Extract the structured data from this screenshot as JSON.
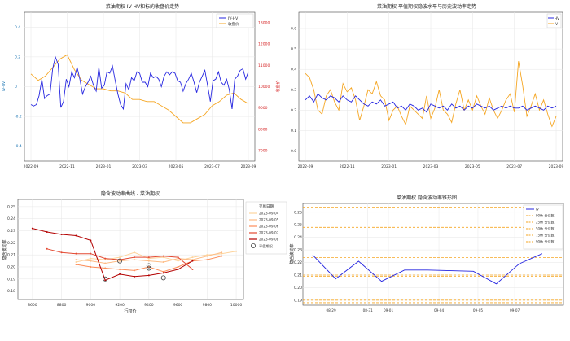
{
  "colors": {
    "iv_hv": "#2525e0",
    "close": "#f5a623",
    "hv": "#f5a623",
    "iv": "#2525e0",
    "close_axis": "#d62728",
    "ivhv_axis": "#1f77b4",
    "pct": "#f5a623",
    "grid": "#e6e6e6",
    "series_2023_09_04": "#fdd49e",
    "series_2023_09_05": "#fdbb84",
    "series_2023_09_06": "#fc8d59",
    "series_2023_09_07": "#e34a33",
    "series_2023_09_08": "#b30000"
  },
  "chart_data": [
    {
      "id": "c1",
      "type": "line",
      "title": "菜油期权 IV-HV和标的收盘价走势",
      "x_ticks": [
        "2022-09",
        "2022-11",
        "2023-01",
        "2023-03",
        "2023-05",
        "2023-07",
        "2023-09"
      ],
      "x_range": [
        0,
        12
      ],
      "ylabel_left": "iv-hv",
      "ylim_left": [
        -0.5,
        0.5
      ],
      "yticks_left": [
        "0.4",
        "0.2",
        "0",
        "-0.2",
        "-0.4"
      ],
      "yticks_left_values": [
        0.4,
        0.2,
        0,
        -0.2,
        -0.4
      ],
      "ylabel_right": "收盘价",
      "ylim_right": [
        6500,
        13500
      ],
      "yticks_right": [
        "13000",
        "12000",
        "11000",
        "10000",
        "9000",
        "8000",
        "7000"
      ],
      "yticks_right_values": [
        13000,
        12000,
        11000,
        10000,
        9000,
        8000,
        7000
      ],
      "legend": [
        "IV-HV",
        "收盘价"
      ],
      "series": [
        {
          "name": "IV-HV",
          "axis": "left",
          "x": [
            0.0,
            0.15,
            0.3,
            0.45,
            0.6,
            0.75,
            0.9,
            1.05,
            1.2,
            1.35,
            1.5,
            1.65,
            1.8,
            1.95,
            2.1,
            2.25,
            2.4,
            2.55,
            2.7,
            2.85,
            3.0,
            3.15,
            3.3,
            3.45,
            3.6,
            3.75,
            3.9,
            4.05,
            4.2,
            4.35,
            4.5,
            4.65,
            4.8,
            4.95,
            5.1,
            5.25,
            5.4,
            5.55,
            5.7,
            5.85,
            6.0,
            6.15,
            6.3,
            6.45,
            6.6,
            6.75,
            6.9,
            7.05,
            7.2,
            7.35,
            7.5,
            7.65,
            7.8,
            7.95,
            8.1,
            8.25,
            8.4,
            8.55,
            8.7,
            8.85,
            9.0,
            9.15,
            9.3,
            9.45,
            9.6,
            9.75,
            9.9,
            10.05,
            10.2,
            10.35,
            10.5,
            10.65,
            10.8,
            10.95,
            11.1,
            11.25,
            11.4,
            11.55,
            11.7,
            11.85,
            12.0
          ],
          "values": [
            -0.12,
            -0.13,
            -0.12,
            -0.06,
            0.05,
            -0.08,
            -0.06,
            -0.05,
            0.12,
            0.2,
            0.15,
            -0.14,
            -0.1,
            0.05,
            0.0,
            0.1,
            0.06,
            0.13,
            0.05,
            -0.05,
            0.0,
            0.03,
            0.07,
            0.01,
            -0.03,
            0.13,
            -0.01,
            0.01,
            0.1,
            0.09,
            0.14,
            0.04,
            -0.05,
            -0.12,
            -0.15,
            0.02,
            -0.02,
            0.06,
            0.04,
            0.1,
            0.09,
            0.03,
            0.03,
            0.0,
            0.09,
            0.06,
            0.07,
            0.05,
            0.0,
            0.07,
            0.1,
            0.08,
            0.1,
            0.09,
            0.04,
            0.03,
            -0.03,
            0.02,
            0.05,
            0.09,
            0.03,
            -0.04,
            0.03,
            0.07,
            0.11,
            0.01,
            -0.1,
            0.04,
            0.05,
            0.1,
            0.03,
            0.01,
            0.05,
            -0.02,
            -0.15,
            0.05,
            0.07,
            0.11,
            0.12,
            0.05,
            0.1
          ]
        },
        {
          "name": "收盘价",
          "axis": "right",
          "x": [
            0.0,
            0.4,
            0.8,
            1.2,
            1.6,
            2.0,
            2.4,
            2.8,
            3.2,
            3.6,
            4.0,
            4.4,
            4.8,
            5.2,
            5.6,
            6.0,
            6.4,
            6.8,
            7.2,
            7.6,
            8.0,
            8.4,
            8.8,
            9.2,
            9.6,
            10.0,
            10.4,
            10.8,
            11.2,
            11.6,
            12.0
          ],
          "values": [
            10600,
            10300,
            10500,
            10900,
            11300,
            11500,
            10800,
            10300,
            10100,
            9900,
            9900,
            9800,
            9800,
            9700,
            9400,
            9400,
            9300,
            9300,
            9100,
            8900,
            8600,
            8300,
            8300,
            8500,
            8700,
            9100,
            9300,
            9600,
            9700,
            9400,
            9200
          ]
        }
      ]
    },
    {
      "id": "c2",
      "type": "line",
      "title": "菜油期权 平值期权隐波水平与历史波动率走势",
      "x_ticks": [
        "2022-09",
        "2022-11",
        "2023-01",
        "2023-03",
        "2023-05",
        "2023-07",
        "2023-09"
      ],
      "x_range": [
        0,
        12
      ],
      "ylim": [
        -0.05,
        0.68
      ],
      "yticks": [
        "0.6",
        "0.5",
        "0.4",
        "0.3",
        "0.2",
        "0.1",
        "0.0"
      ],
      "yticks_values": [
        0.6,
        0.5,
        0.4,
        0.3,
        0.2,
        0.1,
        0.0
      ],
      "legend": [
        "HV",
        "IV"
      ],
      "series": [
        {
          "name": "IV",
          "x": [
            0.0,
            0.2,
            0.4,
            0.6,
            0.8,
            1.0,
            1.2,
            1.4,
            1.6,
            1.8,
            2.0,
            2.2,
            2.4,
            2.6,
            2.8,
            3.0,
            3.2,
            3.4,
            3.6,
            3.8,
            4.0,
            4.2,
            4.4,
            4.6,
            4.8,
            5.0,
            5.2,
            5.4,
            5.6,
            5.8,
            6.0,
            6.2,
            6.4,
            6.6,
            6.8,
            7.0,
            7.2,
            7.4,
            7.6,
            7.8,
            8.0,
            8.2,
            8.4,
            8.6,
            8.8,
            9.0,
            9.2,
            9.4,
            9.6,
            9.8,
            10.0,
            10.2,
            10.4,
            10.6,
            10.8,
            11.0,
            11.2,
            11.4,
            11.6,
            11.8,
            12.0
          ],
          "values": [
            0.25,
            0.27,
            0.24,
            0.28,
            0.26,
            0.25,
            0.27,
            0.26,
            0.24,
            0.27,
            0.25,
            0.24,
            0.27,
            0.25,
            0.23,
            0.22,
            0.24,
            0.23,
            0.25,
            0.22,
            0.23,
            0.24,
            0.21,
            0.22,
            0.2,
            0.23,
            0.22,
            0.2,
            0.21,
            0.19,
            0.23,
            0.22,
            0.21,
            0.22,
            0.2,
            0.23,
            0.21,
            0.22,
            0.2,
            0.22,
            0.21,
            0.23,
            0.22,
            0.21,
            0.22,
            0.2,
            0.21,
            0.22,
            0.21,
            0.22,
            0.21,
            0.21,
            0.22,
            0.2,
            0.21,
            0.22,
            0.21,
            0.2,
            0.22,
            0.21,
            0.22
          ]
        },
        {
          "name": "HV",
          "x": [
            0.0,
            0.2,
            0.4,
            0.6,
            0.8,
            1.0,
            1.2,
            1.4,
            1.6,
            1.8,
            2.0,
            2.2,
            2.4,
            2.6,
            2.8,
            3.0,
            3.2,
            3.4,
            3.6,
            3.8,
            4.0,
            4.2,
            4.4,
            4.6,
            4.8,
            5.0,
            5.2,
            5.4,
            5.6,
            5.8,
            6.0,
            6.2,
            6.4,
            6.6,
            6.8,
            7.0,
            7.2,
            7.4,
            7.6,
            7.8,
            8.0,
            8.2,
            8.4,
            8.6,
            8.8,
            9.0,
            9.2,
            9.4,
            9.6,
            9.8,
            10.0,
            10.2,
            10.4,
            10.6,
            10.8,
            11.0,
            11.2,
            11.4,
            11.6,
            11.8,
            12.0
          ],
          "values": [
            0.38,
            0.36,
            0.3,
            0.2,
            0.18,
            0.27,
            0.3,
            0.24,
            0.2,
            0.33,
            0.29,
            0.31,
            0.25,
            0.15,
            0.22,
            0.3,
            0.28,
            0.34,
            0.27,
            0.25,
            0.15,
            0.2,
            0.22,
            0.17,
            0.13,
            0.22,
            0.2,
            0.18,
            0.16,
            0.27,
            0.16,
            0.21,
            0.3,
            0.2,
            0.18,
            0.14,
            0.23,
            0.3,
            0.2,
            0.25,
            0.2,
            0.27,
            0.22,
            0.18,
            0.26,
            0.2,
            0.16,
            0.2,
            0.25,
            0.28,
            0.19,
            0.44,
            0.32,
            0.17,
            0.22,
            0.28,
            0.2,
            0.25,
            0.18,
            0.12,
            0.17
          ]
        }
      ]
    },
    {
      "id": "c3",
      "type": "line",
      "title": "隐含波动率曲线 - 菜油期权",
      "xlabel": "行权价",
      "ylabel": "隐含波动率",
      "xlim": [
        8500,
        10050
      ],
      "ylim": [
        0.173,
        0.256
      ],
      "x_ticks": [
        "8600",
        "8800",
        "9000",
        "9200",
        "9400",
        "9600",
        "9800",
        "10000"
      ],
      "x_ticks_values": [
        8600,
        8800,
        9000,
        9200,
        9400,
        9600,
        9800,
        10000
      ],
      "y_ticks": [
        "0.25",
        "0.24",
        "0.23",
        "0.22",
        "0.21",
        "0.20",
        "0.19",
        "0.18"
      ],
      "y_ticks_values": [
        0.25,
        0.24,
        0.23,
        0.22,
        0.21,
        0.2,
        0.19,
        0.18
      ],
      "legend_title": "交易日期",
      "legend": [
        "2023-09-04",
        "2023-09-05",
        "2023-09-06",
        "2023-09-07",
        "2023-09-08",
        "平值期权"
      ],
      "series": [
        {
          "name": "2023-09-04",
          "x": [
            8900,
            9000,
            9100,
            9200,
            9300,
            9400,
            9500,
            9600,
            9700,
            9800,
            9900,
            10000
          ],
          "values": [
            0.204,
            0.207,
            0.206,
            0.208,
            0.212,
            0.207,
            0.208,
            0.205,
            0.208,
            0.21,
            0.211,
            0.213
          ]
        },
        {
          "name": "2023-09-05",
          "x": [
            8900,
            9000,
            9100,
            9200,
            9300,
            9400,
            9500,
            9600,
            9700,
            9800,
            9900
          ],
          "values": [
            0.206,
            0.205,
            0.203,
            0.205,
            0.206,
            0.205,
            0.204,
            0.207,
            0.206,
            0.209,
            0.212
          ]
        },
        {
          "name": "2023-09-06",
          "x": [
            8900,
            9000,
            9100,
            9200,
            9300,
            9400,
            9500,
            9600,
            9700,
            9800,
            9900
          ],
          "values": [
            0.202,
            0.2,
            0.199,
            0.198,
            0.197,
            0.2,
            0.196,
            0.2,
            0.205,
            0.206,
            0.209
          ]
        },
        {
          "name": "2023-09-07",
          "x": [
            8700,
            8800,
            8900,
            9000,
            9100,
            9200,
            9300,
            9400,
            9500,
            9600,
            9700
          ],
          "values": [
            0.215,
            0.212,
            0.211,
            0.211,
            0.207,
            0.206,
            0.208,
            0.208,
            0.209,
            0.208,
            0.198
          ]
        },
        {
          "name": "2023-09-08",
          "x": [
            8600,
            8700,
            8800,
            8900,
            9000,
            9100,
            9200,
            9300,
            9400,
            9500,
            9600,
            9700
          ],
          "values": [
            0.232,
            0.229,
            0.227,
            0.226,
            0.222,
            0.189,
            0.194,
            0.192,
            0.193,
            0.195,
            0.198,
            0.205
          ]
        }
      ],
      "atm": {
        "x": [
          9100,
          9200,
          9400,
          9400,
          9500
        ],
        "values": [
          0.19,
          0.205,
          0.201,
          0.199,
          0.191
        ]
      }
    },
    {
      "id": "c4",
      "type": "line",
      "title": "菜油期权 隐含波动率锥形图",
      "ylabel": "隐含波动率",
      "xlim": [
        0,
        10.5
      ],
      "ylim": [
        0.186,
        0.267
      ],
      "x_ticks": [
        "08-29",
        "08-31",
        "09-01",
        "09-04",
        "09-05",
        "09-07"
      ],
      "x_ticks_values": [
        0.8,
        2.4,
        3.3,
        5.5,
        7.2,
        8.8
      ],
      "y_ticks": [
        "0.26",
        "0.25",
        "0.24",
        "0.23",
        "0.22",
        "0.21",
        "0.20",
        "0.19"
      ],
      "y_ticks_values": [
        0.26,
        0.25,
        0.24,
        0.23,
        0.22,
        0.21,
        0.2,
        0.19
      ],
      "legend": [
        "IV",
        "90th 分位数",
        "25th 分位数",
        "50th 分位数",
        "75th 分位数",
        "90th 分位数"
      ],
      "series": [
        {
          "name": "IV",
          "x": [
            0.0,
            1.0,
            2.0,
            3.0,
            4.0,
            5.0,
            7.0,
            8.0,
            9.0,
            10.0
          ],
          "values": [
            0.226,
            0.207,
            0.221,
            0.205,
            0.214,
            0.214,
            0.213,
            0.203,
            0.219,
            0.227
          ]
        }
      ],
      "percentiles": [
        0.264,
        0.248,
        0.224,
        0.21,
        0.209,
        0.19,
        0.188
      ]
    }
  ]
}
